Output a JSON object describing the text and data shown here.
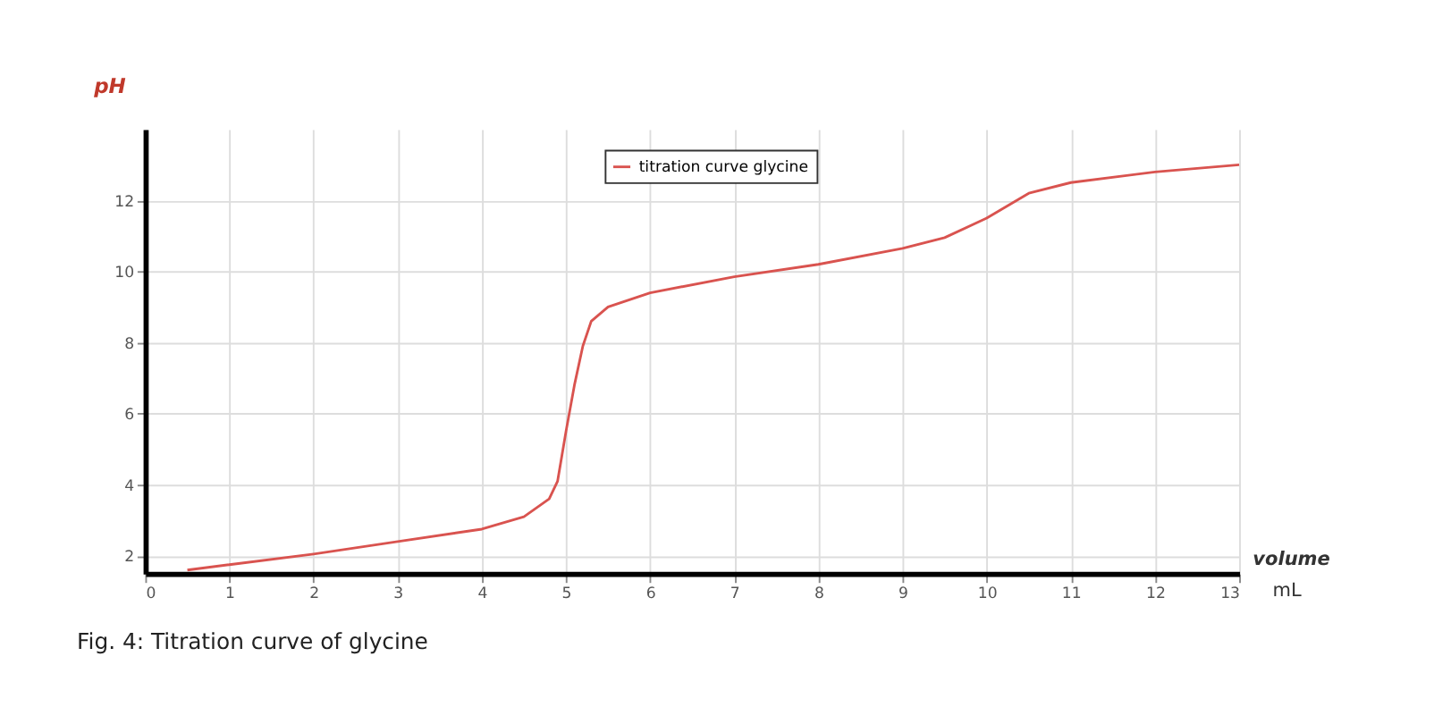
{
  "chart_data": {
    "type": "line",
    "ylabel": "pH",
    "xlabel": "volume",
    "annotations": [
      "mL",
      "Fig. 4: Titration curve of glycine"
    ],
    "series": [
      {
        "name": "titration curve glycine",
        "color": "#d9534f",
        "x": [
          0.5,
          1,
          2,
          3,
          4,
          4.5,
          4.8,
          4.9,
          5.0,
          5.1,
          5.2,
          5.3,
          5.5,
          6,
          7,
          8,
          9,
          9.5,
          10,
          10.5,
          11,
          12,
          13
        ],
        "values": [
          1.6,
          1.75,
          2.05,
          2.4,
          2.75,
          3.1,
          3.6,
          4.1,
          5.5,
          6.8,
          7.9,
          8.6,
          9.0,
          9.4,
          9.85,
          10.2,
          10.65,
          10.95,
          11.5,
          12.2,
          12.5,
          12.8,
          13.0
        ]
      }
    ],
    "xlim": [
      0,
      13
    ],
    "xticks": [
      0,
      1,
      2,
      3,
      4,
      5,
      6,
      7,
      8,
      9,
      10,
      11,
      12,
      13
    ],
    "ylim": [
      1.5,
      14
    ],
    "yticks": [
      2,
      4,
      6,
      8,
      10,
      12
    ],
    "grid": true,
    "legend": "top",
    "line_style": "solid",
    "marker": "none"
  }
}
